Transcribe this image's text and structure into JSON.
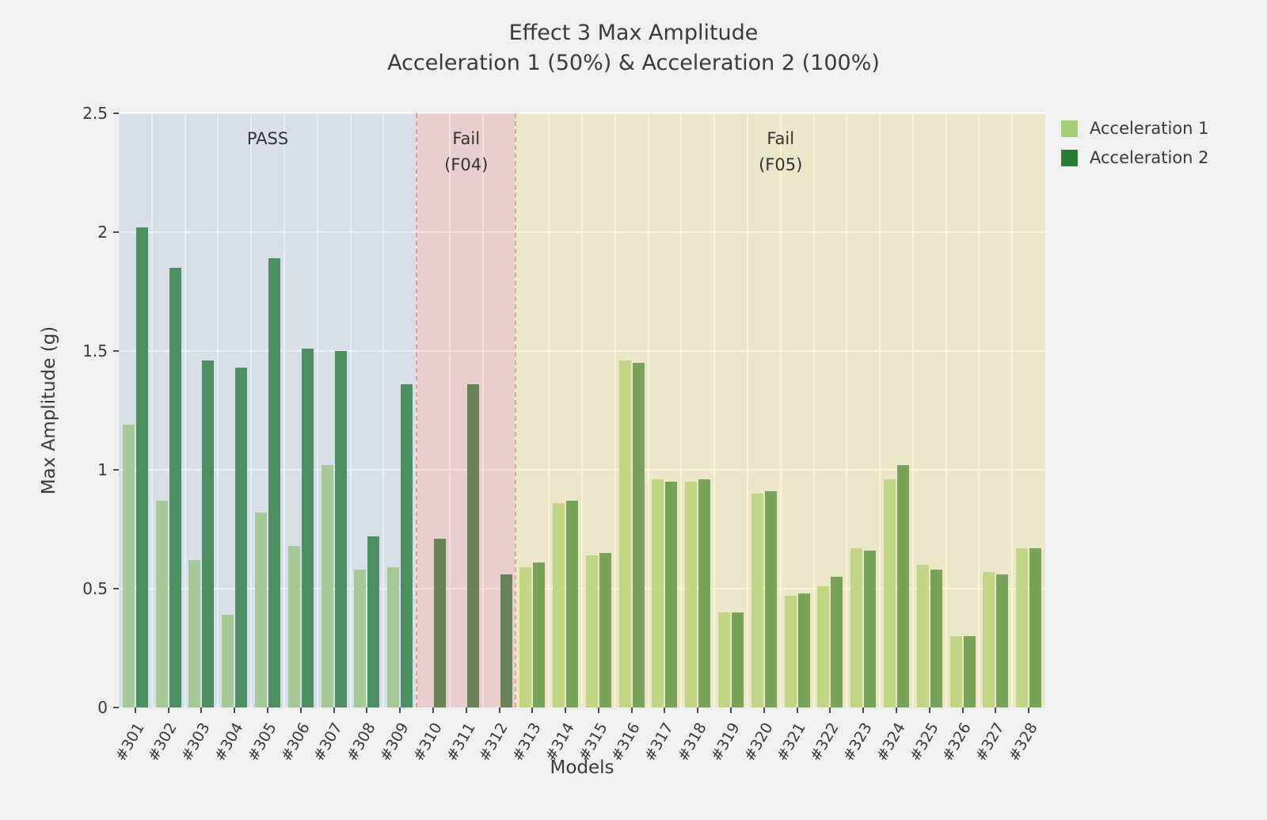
{
  "title": {
    "line1": "Effect 3 Max Amplitude",
    "line2": "Acceleration 1 (50%) & Acceleration 2 (100%)"
  },
  "chart_data": {
    "type": "bar",
    "title": "Effect 3 Max Amplitude\nAcceleration 1 (50%) & Acceleration 2 (100%)",
    "xlabel": "Models",
    "ylabel": "Max Amplitude (g)",
    "ylim": [
      0,
      2.5
    ],
    "grid": true,
    "plot_bg": "#ebebeb",
    "grid_color": "#ffffff",
    "legend_position": "upper right outside",
    "yticks": {
      "values": [
        0,
        0.5,
        1,
        1.5,
        2,
        2.5
      ],
      "labels": [
        "0",
        "0.5",
        "1",
        "1.5",
        "2",
        "2.5"
      ]
    },
    "categories": [
      "#301",
      "#302",
      "#303",
      "#304",
      "#305",
      "#306",
      "#307",
      "#308",
      "#309",
      "#310",
      "#311",
      "#312",
      "#313",
      "#314",
      "#315",
      "#316",
      "#317",
      "#318",
      "#319",
      "#320",
      "#321",
      "#322",
      "#323",
      "#324",
      "#325",
      "#326",
      "#327",
      "#328"
    ],
    "series": [
      {
        "name": "Acceleration 1",
        "color": "#a5ce79",
        "values": [
          1.19,
          0.87,
          0.62,
          0.39,
          0.82,
          0.68,
          1.02,
          0.58,
          0.59,
          0,
          0,
          0,
          0.59,
          0.86,
          0.64,
          1.46,
          0.96,
          0.95,
          0.4,
          0.9,
          0.47,
          0.51,
          0.67,
          0.96,
          0.6,
          0.3,
          0.57,
          0.67
        ]
      },
      {
        "name": "Acceleration 2",
        "color": "#2c7a33",
        "values": [
          2.02,
          1.85,
          1.46,
          1.43,
          1.89,
          1.51,
          1.5,
          0.72,
          1.36,
          0.71,
          1.36,
          0.56,
          0.61,
          0.87,
          0.65,
          1.45,
          0.95,
          0.96,
          0.4,
          0.91,
          0.48,
          0.55,
          0.66,
          1.02,
          0.58,
          0.3,
          0.56,
          0.67
        ]
      }
    ],
    "regions": [
      {
        "label": "PASS",
        "sublabel": "",
        "start": 0,
        "end": 8,
        "overlay": "rgba(170,195,225,0.28)",
        "border": ""
      },
      {
        "label": "Fail",
        "sublabel": "(F04)",
        "start": 9,
        "end": 11,
        "overlay": "rgba(232,148,155,0.33)",
        "border": "rgba(205,135,125,0.75)"
      },
      {
        "label": "Fail",
        "sublabel": "(F05)",
        "start": 12,
        "end": 27,
        "overlay": "rgba(238,225,150,0.40)",
        "border": "rgba(220,165,95,0.85)"
      }
    ]
  }
}
